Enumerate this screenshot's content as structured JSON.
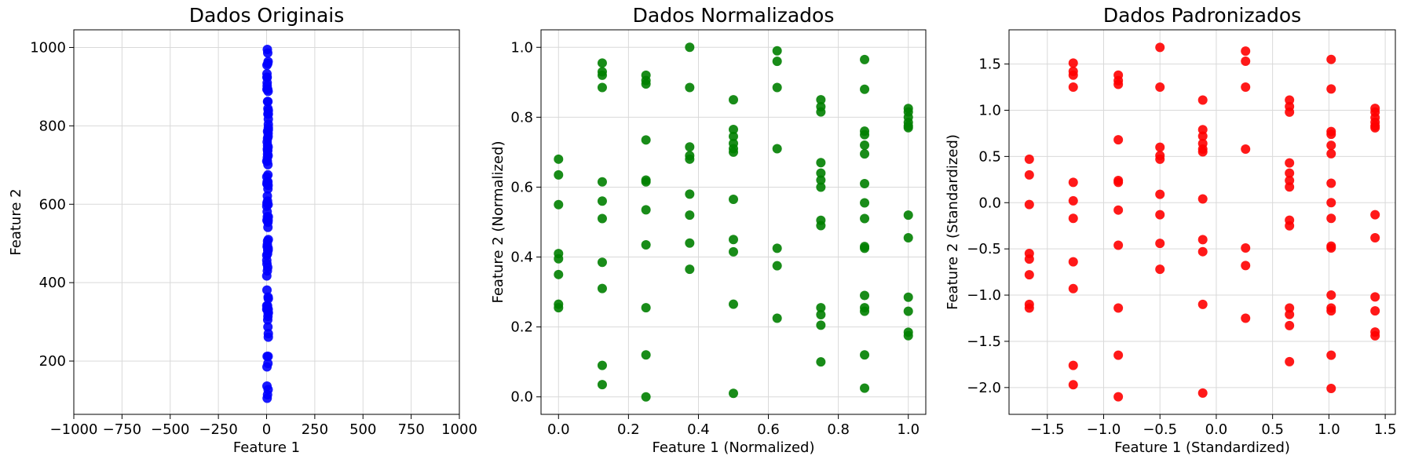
{
  "chart_data": [
    {
      "type": "scatter",
      "title": "Dados Originais",
      "xlabel": "Feature 1",
      "ylabel": "Feature 2",
      "color": "#0000ff",
      "grid": true,
      "xlim": [
        -1000,
        1000
      ],
      "ylim": [
        64,
        1045
      ],
      "xticks": [
        {
          "value": -1000,
          "label": "−1000"
        },
        {
          "value": -750,
          "label": "−750"
        },
        {
          "value": -500,
          "label": "−500"
        },
        {
          "value": -250,
          "label": "−250"
        },
        0,
        250,
        500,
        750,
        1000
      ],
      "yticks": [
        200,
        400,
        600,
        800,
        1000
      ],
      "x": [
        1,
        1,
        1,
        1,
        1,
        1,
        1,
        1,
        2,
        2,
        2,
        2,
        2,
        2,
        2,
        2,
        2,
        2,
        2,
        3,
        3,
        3,
        3,
        3,
        3,
        3,
        3,
        3,
        3,
        3,
        4,
        4,
        4,
        4,
        4,
        4,
        4,
        4,
        4,
        5,
        5,
        5,
        5,
        5,
        5,
        5,
        5,
        5,
        5,
        5,
        6,
        6,
        6,
        6,
        6,
        6,
        6,
        7,
        7,
        7,
        7,
        7,
        7,
        7,
        7,
        7,
        7,
        7,
        7,
        7,
        8,
        8,
        8,
        8,
        8,
        8,
        8,
        8,
        8,
        8,
        8,
        8,
        8,
        8,
        8,
        8,
        9,
        9,
        9,
        9,
        9,
        9,
        9,
        9,
        9,
        9,
        9,
        9
      ],
      "y": [
        710,
        670,
        595,
        470,
        457,
        417,
        341,
        332,
        955,
        933,
        924,
        893,
        652,
        603,
        559,
        448,
        381,
        185,
        136,
        924,
        910,
        902,
        759,
        657,
        652,
        581,
        492,
        332,
        212,
        105,
        995,
        893,
        741,
        719,
        710,
        621,
        568,
        497,
        430,
        862,
        786,
        768,
        750,
        737,
        728,
        608,
        506,
        474,
        341,
        114,
        986,
        959,
        893,
        737,
        483,
        439,
        305,
        862,
        844,
        830,
        701,
        675,
        657,
        639,
        554,
        541,
        332,
        314,
        287,
        194,
        964,
        888,
        781,
        773,
        746,
        724,
        648,
        599,
        559,
        488,
        483,
        363,
        332,
        323,
        212,
        127,
        839,
        830,
        817,
        804,
        795,
        790,
        568,
        510,
        359,
        323,
        270,
        261
      ]
    },
    {
      "type": "scatter",
      "title": "Dados Normalizados",
      "xlabel": "Feature 1 (Normalized)",
      "ylabel": "Feature 2 (Normalized)",
      "color": "#008000",
      "grid": true,
      "xlim": [
        -0.05,
        1.05
      ],
      "ylim": [
        -0.05,
        1.05
      ],
      "xticks": [
        {
          "value": 0,
          "label": "0.0"
        },
        0.2,
        0.4,
        0.6,
        0.8,
        {
          "value": 1,
          "label": "1.0"
        }
      ],
      "yticks": [
        {
          "value": 0,
          "label": "0.0"
        },
        0.2,
        0.4,
        0.6,
        0.8,
        {
          "value": 1,
          "label": "1.0"
        }
      ],
      "x": [
        0,
        0,
        0,
        0,
        0,
        0,
        0,
        0,
        0.125,
        0.125,
        0.125,
        0.125,
        0.125,
        0.125,
        0.125,
        0.125,
        0.125,
        0.125,
        0.125,
        0.25,
        0.25,
        0.25,
        0.25,
        0.25,
        0.25,
        0.25,
        0.25,
        0.25,
        0.25,
        0.25,
        0.375,
        0.375,
        0.375,
        0.375,
        0.375,
        0.375,
        0.375,
        0.375,
        0.375,
        0.5,
        0.5,
        0.5,
        0.5,
        0.5,
        0.5,
        0.5,
        0.5,
        0.5,
        0.5,
        0.5,
        0.625,
        0.625,
        0.625,
        0.625,
        0.625,
        0.625,
        0.625,
        0.75,
        0.75,
        0.75,
        0.75,
        0.75,
        0.75,
        0.75,
        0.75,
        0.75,
        0.75,
        0.75,
        0.75,
        0.75,
        0.875,
        0.875,
        0.875,
        0.875,
        0.875,
        0.875,
        0.875,
        0.875,
        0.875,
        0.875,
        0.875,
        0.875,
        0.875,
        0.875,
        0.875,
        0.875,
        1,
        1,
        1,
        1,
        1,
        1,
        1,
        1,
        1,
        1,
        1,
        1
      ],
      "y": [
        0.68,
        0.635,
        0.55,
        0.41,
        0.395,
        0.35,
        0.265,
        0.255,
        0.955,
        0.93,
        0.92,
        0.885,
        0.615,
        0.56,
        0.51,
        0.385,
        0.31,
        0.09,
        0.035,
        0.92,
        0.905,
        0.895,
        0.735,
        0.62,
        0.615,
        0.535,
        0.435,
        0.255,
        0.12,
        0,
        1,
        0.885,
        0.715,
        0.69,
        0.68,
        0.58,
        0.52,
        0.44,
        0.365,
        0.85,
        0.765,
        0.745,
        0.725,
        0.71,
        0.7,
        0.565,
        0.45,
        0.415,
        0.265,
        0.01,
        0.99,
        0.96,
        0.885,
        0.71,
        0.425,
        0.375,
        0.225,
        0.85,
        0.83,
        0.815,
        0.67,
        0.64,
        0.62,
        0.6,
        0.505,
        0.49,
        0.255,
        0.235,
        0.205,
        0.1,
        0.965,
        0.88,
        0.76,
        0.75,
        0.72,
        0.695,
        0.61,
        0.555,
        0.51,
        0.43,
        0.425,
        0.29,
        0.255,
        0.245,
        0.12,
        0.025,
        0.825,
        0.815,
        0.8,
        0.785,
        0.775,
        0.77,
        0.52,
        0.455,
        0.285,
        0.245,
        0.185,
        0.175
      ]
    },
    {
      "type": "scatter",
      "title": "Dados Padronizados",
      "xlabel": "Feature 1 (Standardized)",
      "ylabel": "Feature 2 (Standardized)",
      "color": "#ff0000",
      "grid": true,
      "xlim": [
        -1.84,
        1.59
      ],
      "ylim": [
        -2.29,
        1.87
      ],
      "xticks": [
        {
          "value": -1.5,
          "label": "−1.5"
        },
        {
          "value": -1,
          "label": "−1.0"
        },
        {
          "value": -0.5,
          "label": "−0.5"
        },
        {
          "value": 0,
          "label": "0.0"
        },
        0.5,
        {
          "value": 1,
          "label": "1.0"
        },
        1.5
      ],
      "yticks": [
        {
          "value": -2,
          "label": "−2.0"
        },
        {
          "value": -1.5,
          "label": "−1.5"
        },
        {
          "value": -1,
          "label": "−1.0"
        },
        {
          "value": -0.5,
          "label": "−0.5"
        },
        {
          "value": 0,
          "label": "0.0"
        },
        0.5,
        {
          "value": 1,
          "label": "1.0"
        },
        1.5
      ],
      "x": [
        -1.66,
        -1.66,
        -1.66,
        -1.66,
        -1.66,
        -1.66,
        -1.66,
        -1.66,
        -1.27,
        -1.27,
        -1.27,
        -1.27,
        -1.27,
        -1.27,
        -1.27,
        -1.27,
        -1.27,
        -1.27,
        -1.27,
        -0.87,
        -0.87,
        -0.87,
        -0.87,
        -0.87,
        -0.87,
        -0.87,
        -0.87,
        -0.87,
        -0.87,
        -0.87,
        -0.5,
        -0.5,
        -0.5,
        -0.5,
        -0.5,
        -0.5,
        -0.5,
        -0.5,
        -0.5,
        -0.12,
        -0.12,
        -0.12,
        -0.12,
        -0.12,
        -0.12,
        -0.12,
        -0.12,
        -0.12,
        -0.12,
        -0.12,
        0.26,
        0.26,
        0.26,
        0.26,
        0.26,
        0.26,
        0.26,
        0.65,
        0.65,
        0.65,
        0.65,
        0.65,
        0.65,
        0.65,
        0.65,
        0.65,
        0.65,
        0.65,
        0.65,
        0.65,
        1.02,
        1.02,
        1.02,
        1.02,
        1.02,
        1.02,
        1.02,
        1.02,
        1.02,
        1.02,
        1.02,
        1.02,
        1.02,
        1.02,
        1.02,
        1.02,
        1.41,
        1.41,
        1.41,
        1.41,
        1.41,
        1.41,
        1.41,
        1.41,
        1.41,
        1.41,
        1.41,
        1.41
      ],
      "y": [
        0.47,
        0.3,
        -0.02,
        -0.55,
        -0.61,
        -0.78,
        -1.1,
        -1.14,
        1.51,
        1.42,
        1.38,
        1.25,
        0.22,
        0.02,
        -0.17,
        -0.64,
        -0.93,
        -1.76,
        -1.97,
        1.38,
        1.32,
        1.28,
        0.68,
        0.24,
        0.22,
        -0.08,
        -0.46,
        -1.14,
        -1.65,
        -2.1,
        1.68,
        1.25,
        0.6,
        0.51,
        0.47,
        0.09,
        -0.13,
        -0.44,
        -0.72,
        1.11,
        0.79,
        0.72,
        0.64,
        0.58,
        0.55,
        0.04,
        -0.4,
        -0.53,
        -1.1,
        -2.06,
        1.64,
        1.53,
        1.25,
        0.58,
        -0.49,
        -0.68,
        -1.25,
        1.11,
        1.04,
        0.98,
        0.43,
        0.32,
        0.24,
        0.17,
        -0.19,
        -0.25,
        -1.14,
        -1.21,
        -1.33,
        -1.72,
        1.55,
        1.23,
        0.77,
        0.74,
        0.62,
        0.53,
        0.21,
        0,
        -0.17,
        -0.47,
        -0.49,
        -1,
        -1.14,
        -1.17,
        -1.65,
        -2.01,
        1.02,
        0.98,
        0.92,
        0.87,
        0.83,
        0.81,
        -0.13,
        -0.38,
        -1.02,
        -1.17,
        -1.4,
        -1.44
      ]
    }
  ]
}
